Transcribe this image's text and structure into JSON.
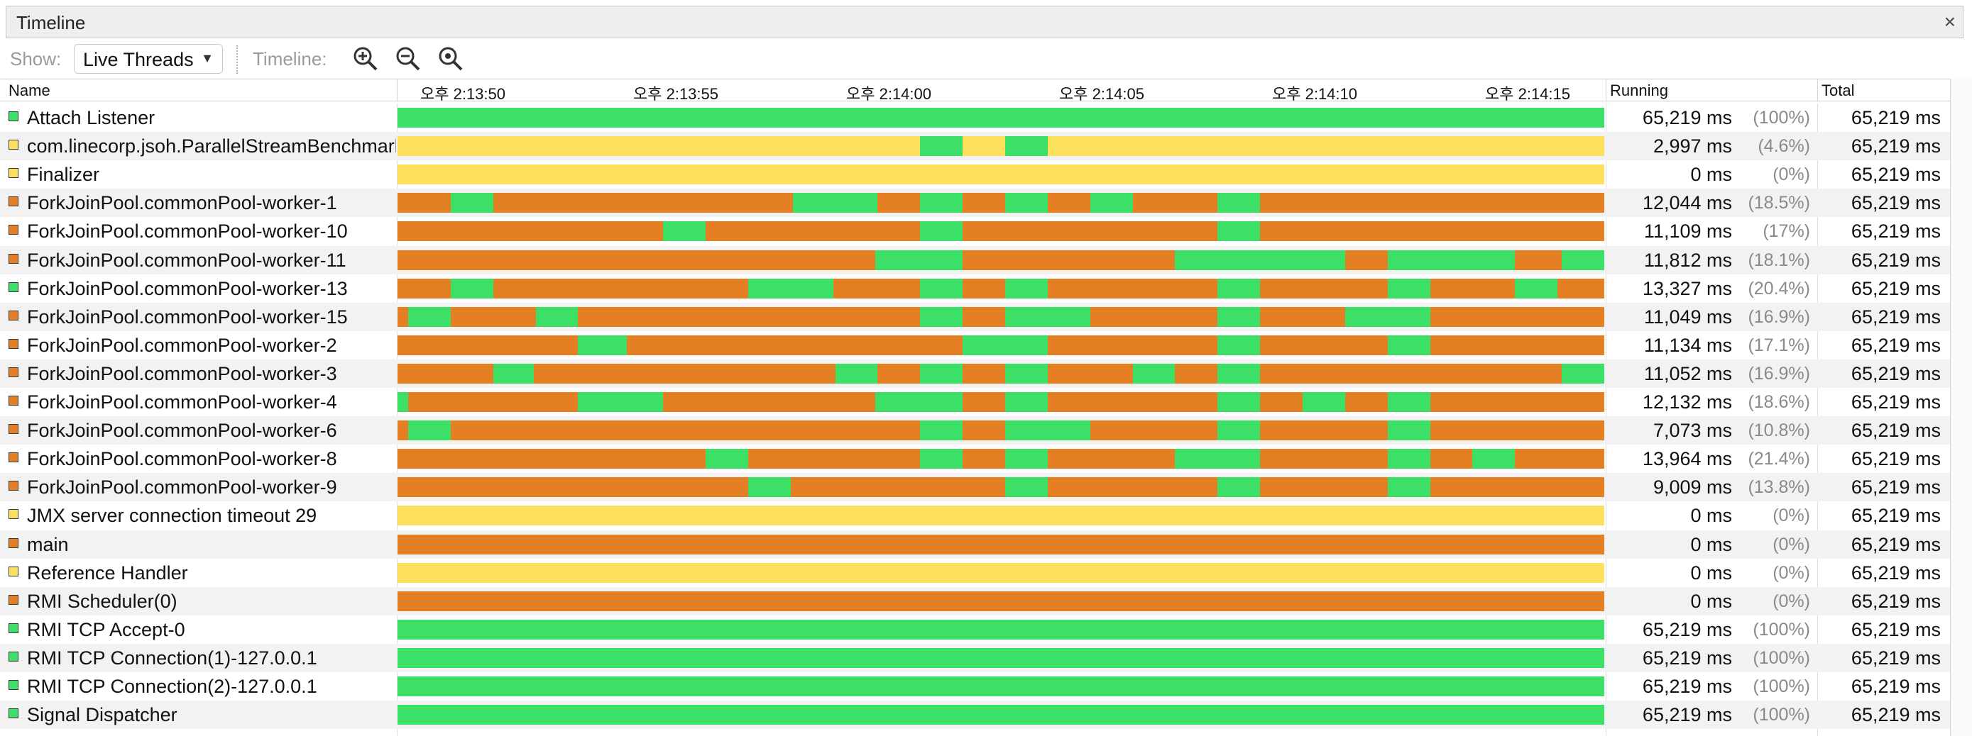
{
  "window": {
    "title": "Timeline",
    "close_label": "×"
  },
  "toolbar": {
    "show_label": "Show:",
    "show_value": "Live Threads",
    "timeline_label": "Timeline:"
  },
  "header": {
    "name": "Name",
    "running": "Running",
    "total": "Total",
    "time_ticks": [
      "오후 2:13:50",
      "오후 2:13:55",
      "오후 2:14:00",
      "오후 2:14:05",
      "오후 2:14:10",
      "오후 2:14:15"
    ]
  },
  "colors": {
    "running": "#3ce066",
    "monitor": "#e47f24",
    "wait": "#fde15e"
  },
  "timeline": {
    "start": 0.0,
    "end": 28.4
  },
  "threads": [
    {
      "name": "Attach Listener",
      "color": "#3ce066",
      "running": "65,219 ms",
      "pct": "(100%)",
      "total": "65,219 ms",
      "segments": [
        [
          0,
          28.4,
          "#3ce066"
        ]
      ]
    },
    {
      "name": "com.linecorp.jsoh.ParallelStreamBenchmark",
      "color": "#fde15e",
      "running": "2,997 ms",
      "pct": "(4.6%)",
      "total": "65,219 ms",
      "segments": [
        [
          0,
          12.3,
          "#fde15e"
        ],
        [
          12.3,
          13.3,
          "#3ce066"
        ],
        [
          13.3,
          14.3,
          "#fde15e"
        ],
        [
          14.3,
          15.3,
          "#3ce066"
        ],
        [
          15.3,
          28.4,
          "#fde15e"
        ]
      ]
    },
    {
      "name": "Finalizer",
      "color": "#fde15e",
      "running": "0 ms",
      "pct": "(0%)",
      "total": "65,219 ms",
      "segments": [
        [
          0,
          28.4,
          "#fde15e"
        ]
      ]
    },
    {
      "name": "ForkJoinPool.commonPool-worker-1",
      "color": "#e47f24",
      "running": "12,044 ms",
      "pct": "(18.5%)",
      "total": "65,219 ms",
      "segments": [
        [
          0,
          1.25,
          "#e47f24"
        ],
        [
          1.25,
          2.25,
          "#3ce066"
        ],
        [
          2.25,
          9.3,
          "#e47f24"
        ],
        [
          9.3,
          11.3,
          "#3ce066"
        ],
        [
          11.3,
          12.3,
          "#e47f24"
        ],
        [
          12.3,
          13.3,
          "#3ce066"
        ],
        [
          13.3,
          14.3,
          "#e47f24"
        ],
        [
          14.3,
          15.3,
          "#3ce066"
        ],
        [
          15.3,
          16.3,
          "#e47f24"
        ],
        [
          16.3,
          17.3,
          "#3ce066"
        ],
        [
          17.3,
          19.3,
          "#e47f24"
        ],
        [
          19.3,
          20.3,
          "#3ce066"
        ],
        [
          20.3,
          28.4,
          "#e47f24"
        ]
      ]
    },
    {
      "name": "ForkJoinPool.commonPool-worker-10",
      "color": "#e47f24",
      "running": "11,109 ms",
      "pct": "(17%)",
      "total": "65,219 ms",
      "segments": [
        [
          0,
          6.25,
          "#e47f24"
        ],
        [
          6.25,
          7.25,
          "#3ce066"
        ],
        [
          7.25,
          12.3,
          "#e47f24"
        ],
        [
          12.3,
          13.3,
          "#3ce066"
        ],
        [
          13.3,
          19.3,
          "#e47f24"
        ],
        [
          19.3,
          20.3,
          "#3ce066"
        ],
        [
          20.3,
          28.4,
          "#e47f24"
        ]
      ]
    },
    {
      "name": "ForkJoinPool.commonPool-worker-11",
      "color": "#e47f24",
      "running": "11,812 ms",
      "pct": "(18.1%)",
      "total": "65,219 ms",
      "segments": [
        [
          0,
          11.25,
          "#e47f24"
        ],
        [
          11.25,
          13.3,
          "#3ce066"
        ],
        [
          13.3,
          18.3,
          "#e47f24"
        ],
        [
          18.3,
          22.3,
          "#3ce066"
        ],
        [
          22.3,
          23.3,
          "#e47f24"
        ],
        [
          23.3,
          26.3,
          "#3ce066"
        ],
        [
          26.3,
          27.4,
          "#e47f24"
        ],
        [
          27.4,
          28.4,
          "#3ce066"
        ]
      ]
    },
    {
      "name": "ForkJoinPool.commonPool-worker-13",
      "color": "#3ce066",
      "running": "13,327 ms",
      "pct": "(20.4%)",
      "total": "65,219 ms",
      "segments": [
        [
          0,
          1.25,
          "#e47f24"
        ],
        [
          1.25,
          2.25,
          "#3ce066"
        ],
        [
          2.25,
          8.25,
          "#e47f24"
        ],
        [
          8.25,
          10.25,
          "#3ce066"
        ],
        [
          10.25,
          12.3,
          "#e47f24"
        ],
        [
          12.3,
          13.3,
          "#3ce066"
        ],
        [
          13.3,
          14.3,
          "#e47f24"
        ],
        [
          14.3,
          15.3,
          "#3ce066"
        ],
        [
          15.3,
          19.3,
          "#e47f24"
        ],
        [
          19.3,
          20.3,
          "#3ce066"
        ],
        [
          20.3,
          23.3,
          "#e47f24"
        ],
        [
          23.3,
          24.3,
          "#3ce066"
        ],
        [
          24.3,
          26.3,
          "#e47f24"
        ],
        [
          26.3,
          27.3,
          "#3ce066"
        ],
        [
          27.3,
          28.4,
          "#e47f24"
        ]
      ]
    },
    {
      "name": "ForkJoinPool.commonPool-worker-15",
      "color": "#e47f24",
      "running": "11,049 ms",
      "pct": "(16.9%)",
      "total": "65,219 ms",
      "segments": [
        [
          0,
          0.25,
          "#e47f24"
        ],
        [
          0.25,
          1.25,
          "#3ce066"
        ],
        [
          1.25,
          3.25,
          "#e47f24"
        ],
        [
          3.25,
          4.25,
          "#3ce066"
        ],
        [
          4.25,
          12.3,
          "#e47f24"
        ],
        [
          12.3,
          13.3,
          "#3ce066"
        ],
        [
          13.3,
          14.3,
          "#e47f24"
        ],
        [
          14.3,
          16.3,
          "#3ce066"
        ],
        [
          16.3,
          19.3,
          "#e47f24"
        ],
        [
          19.3,
          20.3,
          "#3ce066"
        ],
        [
          20.3,
          22.3,
          "#e47f24"
        ],
        [
          22.3,
          24.3,
          "#3ce066"
        ],
        [
          24.3,
          28.4,
          "#e47f24"
        ]
      ]
    },
    {
      "name": "ForkJoinPool.commonPool-worker-2",
      "color": "#e47f24",
      "running": "11,134 ms",
      "pct": "(17.1%)",
      "total": "65,219 ms",
      "segments": [
        [
          0,
          4.25,
          "#e47f24"
        ],
        [
          4.25,
          5.4,
          "#3ce066"
        ],
        [
          5.4,
          13.3,
          "#e47f24"
        ],
        [
          13.3,
          15.3,
          "#3ce066"
        ],
        [
          15.3,
          19.3,
          "#e47f24"
        ],
        [
          19.3,
          20.3,
          "#3ce066"
        ],
        [
          20.3,
          23.3,
          "#e47f24"
        ],
        [
          23.3,
          24.3,
          "#3ce066"
        ],
        [
          24.3,
          28.4,
          "#e47f24"
        ]
      ]
    },
    {
      "name": "ForkJoinPool.commonPool-worker-3",
      "color": "#e47f24",
      "running": "11,052 ms",
      "pct": "(16.9%)",
      "total": "65,219 ms",
      "segments": [
        [
          0,
          2.25,
          "#e47f24"
        ],
        [
          2.25,
          3.2,
          "#3ce066"
        ],
        [
          3.2,
          10.3,
          "#e47f24"
        ],
        [
          10.3,
          11.3,
          "#3ce066"
        ],
        [
          11.3,
          12.3,
          "#e47f24"
        ],
        [
          12.3,
          13.3,
          "#3ce066"
        ],
        [
          13.3,
          14.3,
          "#e47f24"
        ],
        [
          14.3,
          15.3,
          "#3ce066"
        ],
        [
          15.3,
          17.3,
          "#e47f24"
        ],
        [
          17.3,
          18.3,
          "#3ce066"
        ],
        [
          18.3,
          19.3,
          "#e47f24"
        ],
        [
          19.3,
          20.3,
          "#3ce066"
        ],
        [
          20.3,
          27.4,
          "#e47f24"
        ],
        [
          27.4,
          28.4,
          "#3ce066"
        ]
      ]
    },
    {
      "name": "ForkJoinPool.commonPool-worker-4",
      "color": "#e47f24",
      "running": "12,132 ms",
      "pct": "(18.6%)",
      "total": "65,219 ms",
      "segments": [
        [
          0,
          0.25,
          "#3ce066"
        ],
        [
          0.25,
          4.25,
          "#e47f24"
        ],
        [
          4.25,
          6.25,
          "#3ce066"
        ],
        [
          6.25,
          11.25,
          "#e47f24"
        ],
        [
          11.25,
          13.3,
          "#3ce066"
        ],
        [
          13.3,
          14.3,
          "#e47f24"
        ],
        [
          14.3,
          15.3,
          "#3ce066"
        ],
        [
          15.3,
          19.3,
          "#e47f24"
        ],
        [
          19.3,
          20.3,
          "#3ce066"
        ],
        [
          20.3,
          21.3,
          "#e47f24"
        ],
        [
          21.3,
          22.3,
          "#3ce066"
        ],
        [
          22.3,
          23.3,
          "#e47f24"
        ],
        [
          23.3,
          24.3,
          "#3ce066"
        ],
        [
          24.3,
          28.4,
          "#e47f24"
        ]
      ]
    },
    {
      "name": "ForkJoinPool.commonPool-worker-6",
      "color": "#e47f24",
      "running": "7,073 ms",
      "pct": "(10.8%)",
      "total": "65,219 ms",
      "segments": [
        [
          0,
          0.25,
          "#e47f24"
        ],
        [
          0.25,
          1.25,
          "#3ce066"
        ],
        [
          1.25,
          12.3,
          "#e47f24"
        ],
        [
          12.3,
          13.3,
          "#3ce066"
        ],
        [
          13.3,
          14.3,
          "#e47f24"
        ],
        [
          14.3,
          16.3,
          "#3ce066"
        ],
        [
          16.3,
          19.3,
          "#e47f24"
        ],
        [
          19.3,
          20.3,
          "#3ce066"
        ],
        [
          20.3,
          23.3,
          "#e47f24"
        ],
        [
          23.3,
          24.3,
          "#3ce066"
        ],
        [
          24.3,
          28.4,
          "#e47f24"
        ]
      ]
    },
    {
      "name": "ForkJoinPool.commonPool-worker-8",
      "color": "#e47f24",
      "running": "13,964 ms",
      "pct": "(21.4%)",
      "total": "65,219 ms",
      "segments": [
        [
          0,
          7.25,
          "#e47f24"
        ],
        [
          7.25,
          8.25,
          "#3ce066"
        ],
        [
          8.25,
          12.3,
          "#e47f24"
        ],
        [
          12.3,
          13.3,
          "#3ce066"
        ],
        [
          13.3,
          14.3,
          "#e47f24"
        ],
        [
          14.3,
          15.3,
          "#3ce066"
        ],
        [
          15.3,
          18.3,
          "#e47f24"
        ],
        [
          18.3,
          20.3,
          "#3ce066"
        ],
        [
          20.3,
          23.3,
          "#e47f24"
        ],
        [
          23.3,
          24.3,
          "#3ce066"
        ],
        [
          24.3,
          25.3,
          "#e47f24"
        ],
        [
          25.3,
          26.3,
          "#3ce066"
        ],
        [
          26.3,
          28.4,
          "#e47f24"
        ]
      ]
    },
    {
      "name": "ForkJoinPool.commonPool-worker-9",
      "color": "#e47f24",
      "running": "9,009 ms",
      "pct": "(13.8%)",
      "total": "65,219 ms",
      "segments": [
        [
          0,
          8.25,
          "#e47f24"
        ],
        [
          8.25,
          9.25,
          "#3ce066"
        ],
        [
          9.25,
          14.3,
          "#e47f24"
        ],
        [
          14.3,
          15.3,
          "#3ce066"
        ],
        [
          15.3,
          19.3,
          "#e47f24"
        ],
        [
          19.3,
          20.3,
          "#3ce066"
        ],
        [
          20.3,
          23.3,
          "#e47f24"
        ],
        [
          23.3,
          24.3,
          "#3ce066"
        ],
        [
          24.3,
          28.4,
          "#e47f24"
        ]
      ]
    },
    {
      "name": "JMX server connection timeout 29",
      "color": "#fde15e",
      "running": "0 ms",
      "pct": "(0%)",
      "total": "65,219 ms",
      "segments": [
        [
          0,
          28.4,
          "#fde15e"
        ]
      ]
    },
    {
      "name": "main",
      "color": "#e47f24",
      "running": "0 ms",
      "pct": "(0%)",
      "total": "65,219 ms",
      "segments": [
        [
          0,
          28.4,
          "#e47f24"
        ]
      ]
    },
    {
      "name": "Reference Handler",
      "color": "#fde15e",
      "running": "0 ms",
      "pct": "(0%)",
      "total": "65,219 ms",
      "segments": [
        [
          0,
          28.4,
          "#fde15e"
        ]
      ]
    },
    {
      "name": "RMI Scheduler(0)",
      "color": "#e47f24",
      "running": "0 ms",
      "pct": "(0%)",
      "total": "65,219 ms",
      "segments": [
        [
          0,
          28.4,
          "#e47f24"
        ]
      ]
    },
    {
      "name": "RMI TCP Accept-0",
      "color": "#3ce066",
      "running": "65,219 ms",
      "pct": "(100%)",
      "total": "65,219 ms",
      "segments": [
        [
          0,
          28.4,
          "#3ce066"
        ]
      ]
    },
    {
      "name": "RMI TCP Connection(1)-127.0.0.1",
      "color": "#3ce066",
      "running": "65,219 ms",
      "pct": "(100%)",
      "total": "65,219 ms",
      "segments": [
        [
          0,
          28.4,
          "#3ce066"
        ]
      ]
    },
    {
      "name": "RMI TCP Connection(2)-127.0.0.1",
      "color": "#3ce066",
      "running": "65,219 ms",
      "pct": "(100%)",
      "total": "65,219 ms",
      "segments": [
        [
          0,
          28.4,
          "#3ce066"
        ]
      ]
    },
    {
      "name": "Signal Dispatcher",
      "color": "#3ce066",
      "running": "65,219 ms",
      "pct": "(100%)",
      "total": "65,219 ms",
      "segments": [
        [
          0,
          28.4,
          "#3ce066"
        ]
      ]
    }
  ]
}
